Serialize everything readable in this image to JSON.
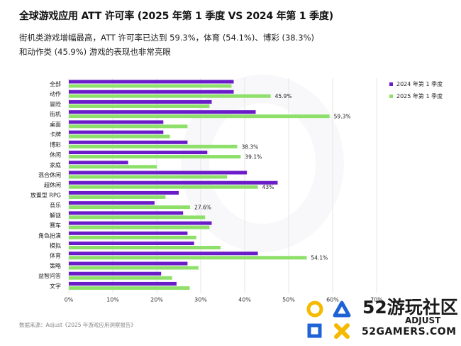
{
  "title": "全球游戏应用 ATT 许可率 (2025 年第 1 季度 VS 2024 年第 1 季度)",
  "subtitle": "街机类游戏增幅最高，ATT 许可率已达到 59.3%，体育 (54.1%)、博彩 (38.3%) 和动作类 (45.9%) 游戏的表现也非常亮眼",
  "source": "数据来源：Adjust《2025 年游戏应用洞察报告》",
  "colors": {
    "series_2024": "#6a1cc8",
    "series_2025": "#8ee06a",
    "grid": "#e6e6e6"
  },
  "logo": {
    "main": "52游玩社区",
    "sub": "52GAMERS.COM",
    "overlay": "ADJUST"
  },
  "chart_data": {
    "type": "bar",
    "orientation": "horizontal",
    "title": "全球游戏应用 ATT 许可率 (2025 年第 1 季度 VS 2024 年第 1 季度)",
    "categories": [
      "全部",
      "动作",
      "冒险",
      "街机",
      "桌面",
      "卡牌",
      "博彩",
      "休闲",
      "家庭",
      "混合休闲",
      "超休闲",
      "放置型 RPG",
      "音乐",
      "解谜",
      "赛车",
      "角色扮演",
      "模拟",
      "体育",
      "策略",
      "益智问答",
      "文字"
    ],
    "series": [
      {
        "name": "2024 年第 1 季度",
        "values": [
          37.5,
          37.5,
          32.5,
          42.5,
          21.5,
          21.5,
          27,
          31.5,
          13.5,
          40.5,
          47.5,
          25,
          19.5,
          26,
          32.5,
          27,
          28.5,
          43,
          27,
          21,
          24.5
        ]
      },
      {
        "name": "2025 年第 1 季度",
        "values": [
          37,
          45.9,
          32,
          59.3,
          27,
          23,
          38.3,
          39.1,
          20,
          36,
          43,
          22,
          27.6,
          31,
          32,
          29,
          34.5,
          54.1,
          29.5,
          23.5,
          27.5
        ]
      }
    ],
    "data_labels": {
      "1": "45.9%",
      "3": "59.3%",
      "6": "38.3%",
      "7": "39.1%",
      "10": "43%",
      "12": "27.6%",
      "17": "54.1%"
    },
    "xlim": [
      0,
      70
    ],
    "xticks": [
      "0%",
      "10%",
      "20%",
      "30%",
      "40%",
      "50%",
      "60%",
      "70%"
    ],
    "grid": true,
    "legend": "top-right"
  }
}
